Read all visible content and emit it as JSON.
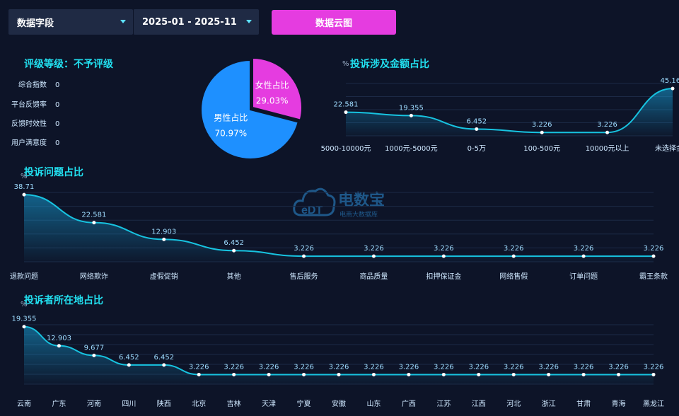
{
  "topbar": {
    "field_select": "数据字段",
    "date_range": "2025-01 - 2025-11",
    "cloud_button": "数据云图"
  },
  "rating": {
    "title": "评级等级：不予评级",
    "rows": [
      {
        "label": "综合指数",
        "value": "0"
      },
      {
        "label": "平台反馈率",
        "value": "0"
      },
      {
        "label": "反馈时效性",
        "value": "0"
      },
      {
        "label": "用户满意度",
        "value": "0"
      }
    ]
  },
  "watermark": {
    "main": "电数宝",
    "sub": "电商大数据库",
    "logo": "eDT"
  },
  "colors": {
    "accent": "#22e0f0",
    "line": "#17c3e0",
    "female": "#e53ce0",
    "male": "#1e90ff"
  },
  "chart_data": [
    {
      "id": "gender",
      "type": "pie",
      "labels": [
        "男性占比",
        "女性占比"
      ],
      "values": [
        70.97,
        29.03
      ],
      "value_labels": [
        "70.97%",
        "29.03%"
      ]
    },
    {
      "id": "amount",
      "type": "area",
      "title": "投诉涉及金额占比",
      "ylabel": "%",
      "categories": [
        "5000-10000元",
        "1000元-5000元",
        "0-5万",
        "100-500元",
        "10000元以上",
        "未选择金额"
      ],
      "values": [
        22.581,
        19.355,
        6.452,
        3.226,
        3.226,
        45.161
      ],
      "ylim": [
        0,
        50
      ]
    },
    {
      "id": "issue",
      "type": "area",
      "title": "投诉问题占比",
      "ylabel": "%",
      "categories": [
        "退款问题",
        "网络欺诈",
        "虚假促销",
        "其他",
        "售后服务",
        "商品质量",
        "扣押保证金",
        "网络售假",
        "订单问题",
        "霸王条款"
      ],
      "values": [
        38.71,
        22.581,
        12.903,
        6.452,
        3.226,
        3.226,
        3.226,
        3.226,
        3.226,
        3.226
      ],
      "ylim": [
        0,
        40
      ]
    },
    {
      "id": "region",
      "type": "area",
      "title": "投诉者所在地占比",
      "ylabel": "%",
      "categories": [
        "云南",
        "广东",
        "河南",
        "四川",
        "陕西",
        "北京",
        "吉林",
        "天津",
        "宁夏",
        "安徽",
        "山东",
        "广西",
        "江苏",
        "江西",
        "河北",
        "浙江",
        "甘肃",
        "青海",
        "黑龙江"
      ],
      "values": [
        19.355,
        12.903,
        9.677,
        6.452,
        6.452,
        3.226,
        3.226,
        3.226,
        3.226,
        3.226,
        3.226,
        3.226,
        3.226,
        3.226,
        3.226,
        3.226,
        3.226,
        3.226,
        3.226
      ],
      "ylim": [
        0,
        20
      ]
    }
  ]
}
